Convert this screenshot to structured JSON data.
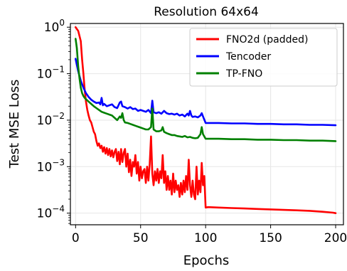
{
  "chart_data": {
    "type": "line",
    "title": "Resolution 64x64",
    "xlabel": "Epochs",
    "ylabel": "Test MSE Loss",
    "xlim": [
      -4,
      206
    ],
    "ylim_log10": [
      -4.25,
      0.08
    ],
    "yscale": "log",
    "grid": true,
    "legend_placement": "top-right",
    "xticks": [
      {
        "value": 0,
        "label": "0"
      },
      {
        "value": 50,
        "label": "50"
      },
      {
        "value": 100,
        "label": "100"
      },
      {
        "value": 150,
        "label": "150"
      },
      {
        "value": 200,
        "label": "200"
      }
    ],
    "yticks": [
      {
        "exp": 0,
        "base": "10",
        "sup": "0"
      },
      {
        "exp": -1,
        "base": "10",
        "sup": "−1"
      },
      {
        "exp": -2,
        "base": "10",
        "sup": "−2"
      },
      {
        "exp": -3,
        "base": "10",
        "sup": "−3"
      },
      {
        "exp": -4,
        "base": "10",
        "sup": "−4"
      }
    ],
    "series": [
      {
        "name": "FNO2d (padded)",
        "color": "#ff0000",
        "log10_values": [
          [
            0,
            0.0
          ],
          [
            2,
            -0.08
          ],
          [
            4,
            -0.3
          ],
          [
            5,
            -0.7
          ],
          [
            6,
            -1.0
          ],
          [
            7,
            -1.35
          ],
          [
            8,
            -1.6
          ],
          [
            9,
            -1.78
          ],
          [
            10,
            -1.9
          ],
          [
            11,
            -2.0
          ],
          [
            12,
            -2.05
          ],
          [
            13,
            -2.15
          ],
          [
            14,
            -2.25
          ],
          [
            15,
            -2.3
          ],
          [
            16,
            -2.45
          ],
          [
            17,
            -2.55
          ],
          [
            18,
            -2.5
          ],
          [
            19,
            -2.6
          ],
          [
            20,
            -2.55
          ],
          [
            21,
            -2.68
          ],
          [
            22,
            -2.58
          ],
          [
            23,
            -2.72
          ],
          [
            24,
            -2.6
          ],
          [
            25,
            -2.75
          ],
          [
            26,
            -2.62
          ],
          [
            27,
            -2.78
          ],
          [
            28,
            -2.65
          ],
          [
            29,
            -2.8
          ],
          [
            30,
            -2.68
          ],
          [
            31,
            -2.62
          ],
          [
            32,
            -2.88
          ],
          [
            33,
            -2.68
          ],
          [
            34,
            -2.95
          ],
          [
            35,
            -2.62
          ],
          [
            36,
            -2.9
          ],
          [
            37,
            -2.7
          ],
          [
            38,
            -2.62
          ],
          [
            39,
            -3.0
          ],
          [
            40,
            -2.72
          ],
          [
            41,
            -3.12
          ],
          [
            42,
            -2.85
          ],
          [
            43,
            -3.2
          ],
          [
            44,
            -2.9
          ],
          [
            45,
            -3.0
          ],
          [
            46,
            -2.75
          ],
          [
            47,
            -3.15
          ],
          [
            48,
            -2.9
          ],
          [
            49,
            -3.3
          ],
          [
            50,
            -3.0
          ],
          [
            51,
            -3.25
          ],
          [
            52,
            -3.1
          ],
          [
            53,
            -3.05
          ],
          [
            54,
            -3.35
          ],
          [
            55,
            -3.0
          ],
          [
            56,
            -3.3
          ],
          [
            57,
            -2.95
          ],
          [
            58,
            -2.35
          ],
          [
            59,
            -3.15
          ],
          [
            60,
            -3.4
          ],
          [
            61,
            -3.1
          ],
          [
            62,
            -3.3
          ],
          [
            63,
            -3.05
          ],
          [
            64,
            -3.35
          ],
          [
            65,
            -3.1
          ],
          [
            66,
            -3.25
          ],
          [
            67,
            -2.75
          ],
          [
            68,
            -3.35
          ],
          [
            69,
            -3.1
          ],
          [
            70,
            -3.5
          ],
          [
            71,
            -3.2
          ],
          [
            72,
            -3.5
          ],
          [
            73,
            -3.3
          ],
          [
            74,
            -3.6
          ],
          [
            75,
            -3.15
          ],
          [
            76,
            -3.55
          ],
          [
            77,
            -3.3
          ],
          [
            78,
            -3.5
          ],
          [
            79,
            -3.4
          ],
          [
            80,
            -3.65
          ],
          [
            81,
            -3.35
          ],
          [
            82,
            -3.6
          ],
          [
            83,
            -3.3
          ],
          [
            84,
            -3.55
          ],
          [
            85,
            -3.2
          ],
          [
            86,
            -3.5
          ],
          [
            87,
            -2.85
          ],
          [
            88,
            -3.4
          ],
          [
            89,
            -3.65
          ],
          [
            90,
            -3.3
          ],
          [
            91,
            -3.6
          ],
          [
            92,
            -3.7
          ],
          [
            93,
            -3.0
          ],
          [
            94,
            -3.6
          ],
          [
            95,
            -3.3
          ],
          [
            96,
            -3.55
          ],
          [
            97,
            -2.92
          ],
          [
            98,
            -3.4
          ],
          [
            99,
            -3.2
          ],
          [
            100,
            -3.88
          ],
          [
            102,
            -3.87
          ],
          [
            110,
            -3.88
          ],
          [
            120,
            -3.89
          ],
          [
            130,
            -3.9
          ],
          [
            140,
            -3.91
          ],
          [
            150,
            -3.92
          ],
          [
            160,
            -3.93
          ],
          [
            170,
            -3.94
          ],
          [
            180,
            -3.95
          ],
          [
            190,
            -3.97
          ],
          [
            198,
            -3.99
          ],
          [
            200,
            -4.0
          ]
        ]
      },
      {
        "name": "Tencoder",
        "color": "#0000ff",
        "log10_values": [
          [
            0,
            -0.68
          ],
          [
            2,
            -0.95
          ],
          [
            4,
            -1.15
          ],
          [
            6,
            -1.3
          ],
          [
            8,
            -1.42
          ],
          [
            10,
            -1.5
          ],
          [
            12,
            -1.56
          ],
          [
            14,
            -1.6
          ],
          [
            16,
            -1.63
          ],
          [
            18,
            -1.62
          ],
          [
            19,
            -1.66
          ],
          [
            20,
            -1.52
          ],
          [
            21,
            -1.68
          ],
          [
            22,
            -1.65
          ],
          [
            24,
            -1.7
          ],
          [
            26,
            -1.68
          ],
          [
            28,
            -1.66
          ],
          [
            30,
            -1.72
          ],
          [
            32,
            -1.74
          ],
          [
            34,
            -1.62
          ],
          [
            35,
            -1.6
          ],
          [
            36,
            -1.7
          ],
          [
            38,
            -1.72
          ],
          [
            40,
            -1.75
          ],
          [
            42,
            -1.72
          ],
          [
            44,
            -1.76
          ],
          [
            46,
            -1.75
          ],
          [
            48,
            -1.8
          ],
          [
            50,
            -1.78
          ],
          [
            52,
            -1.8
          ],
          [
            54,
            -1.82
          ],
          [
            56,
            -1.78
          ],
          [
            58,
            -1.85
          ],
          [
            59,
            -1.58
          ],
          [
            60,
            -1.83
          ],
          [
            62,
            -1.85
          ],
          [
            64,
            -1.83
          ],
          [
            66,
            -1.86
          ],
          [
            68,
            -1.8
          ],
          [
            70,
            -1.85
          ],
          [
            72,
            -1.87
          ],
          [
            74,
            -1.86
          ],
          [
            76,
            -1.88
          ],
          [
            78,
            -1.86
          ],
          [
            80,
            -1.9
          ],
          [
            82,
            -1.88
          ],
          [
            84,
            -1.92
          ],
          [
            86,
            -1.86
          ],
          [
            87,
            -1.9
          ],
          [
            88,
            -1.8
          ],
          [
            89,
            -1.9
          ],
          [
            90,
            -1.93
          ],
          [
            92,
            -1.92
          ],
          [
            94,
            -1.94
          ],
          [
            96,
            -1.9
          ],
          [
            97,
            -1.85
          ],
          [
            98,
            -1.92
          ],
          [
            100,
            -2.06
          ],
          [
            110,
            -2.06
          ],
          [
            120,
            -2.07
          ],
          [
            130,
            -2.07
          ],
          [
            140,
            -2.08
          ],
          [
            150,
            -2.08
          ],
          [
            160,
            -2.09
          ],
          [
            170,
            -2.09
          ],
          [
            180,
            -2.1
          ],
          [
            190,
            -2.1
          ],
          [
            200,
            -2.11
          ]
        ]
      },
      {
        "name": "TP-FNO",
        "color": "#008000",
        "log10_values": [
          [
            0,
            -0.25
          ],
          [
            1,
            -0.45
          ],
          [
            2,
            -0.85
          ],
          [
            3,
            -1.1
          ],
          [
            4,
            -1.3
          ],
          [
            5,
            -1.42
          ],
          [
            6,
            -1.48
          ],
          [
            7,
            -1.52
          ],
          [
            8,
            -1.55
          ],
          [
            10,
            -1.6
          ],
          [
            12,
            -1.65
          ],
          [
            14,
            -1.7
          ],
          [
            16,
            -1.74
          ],
          [
            18,
            -1.78
          ],
          [
            20,
            -1.82
          ],
          [
            22,
            -1.84
          ],
          [
            24,
            -1.86
          ],
          [
            26,
            -1.88
          ],
          [
            28,
            -1.9
          ],
          [
            30,
            -1.95
          ],
          [
            32,
            -2.0
          ],
          [
            34,
            -1.92
          ],
          [
            35,
            -1.95
          ],
          [
            36,
            -1.85
          ],
          [
            37,
            -2.0
          ],
          [
            38,
            -2.05
          ],
          [
            40,
            -2.06
          ],
          [
            42,
            -2.08
          ],
          [
            44,
            -2.1
          ],
          [
            46,
            -2.12
          ],
          [
            48,
            -2.14
          ],
          [
            50,
            -2.16
          ],
          [
            52,
            -2.18
          ],
          [
            54,
            -2.2
          ],
          [
            56,
            -2.2
          ],
          [
            58,
            -2.15
          ],
          [
            59,
            -1.75
          ],
          [
            60,
            -2.2
          ],
          [
            62,
            -2.24
          ],
          [
            64,
            -2.24
          ],
          [
            66,
            -2.22
          ],
          [
            67,
            -2.15
          ],
          [
            68,
            -2.25
          ],
          [
            70,
            -2.28
          ],
          [
            72,
            -2.3
          ],
          [
            74,
            -2.32
          ],
          [
            76,
            -2.32
          ],
          [
            78,
            -2.34
          ],
          [
            80,
            -2.35
          ],
          [
            82,
            -2.36
          ],
          [
            84,
            -2.34
          ],
          [
            86,
            -2.37
          ],
          [
            88,
            -2.36
          ],
          [
            90,
            -2.38
          ],
          [
            92,
            -2.39
          ],
          [
            94,
            -2.38
          ],
          [
            96,
            -2.3
          ],
          [
            97,
            -2.15
          ],
          [
            98,
            -2.3
          ],
          [
            100,
            -2.4
          ],
          [
            110,
            -2.4
          ],
          [
            120,
            -2.41
          ],
          [
            130,
            -2.41
          ],
          [
            140,
            -2.42
          ],
          [
            150,
            -2.42
          ],
          [
            160,
            -2.43
          ],
          [
            170,
            -2.43
          ],
          [
            180,
            -2.44
          ],
          [
            190,
            -2.44
          ],
          [
            200,
            -2.45
          ]
        ]
      }
    ]
  }
}
